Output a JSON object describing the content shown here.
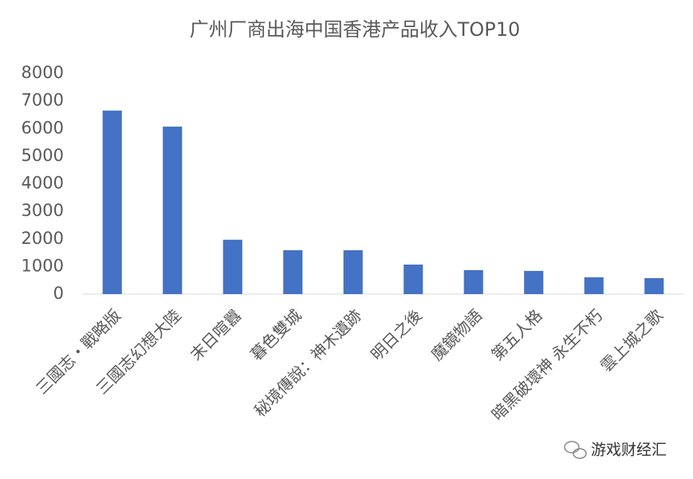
{
  "chart_data": {
    "type": "bar",
    "title": "广州厂商出海中国香港产品收入TOP10",
    "categories": [
      "三國志・戰略版",
      "三國志幻想大陸",
      "末日喧囂",
      "暮色雙城",
      "秘境傳說：神木遺跡",
      "明日之後",
      "魔鏡物語",
      "第五人格",
      "暗黑破壞神 永生不朽",
      "雲上城之歌"
    ],
    "values": [
      6650,
      6070,
      1970,
      1590,
      1590,
      1070,
      870,
      840,
      610,
      580
    ],
    "color": "#4472c4",
    "ylim": [
      0,
      8000
    ],
    "yticks": [
      0,
      1000,
      2000,
      3000,
      4000,
      5000,
      6000,
      7000,
      8000
    ],
    "grid": false
  },
  "watermark": "游戏财经汇"
}
